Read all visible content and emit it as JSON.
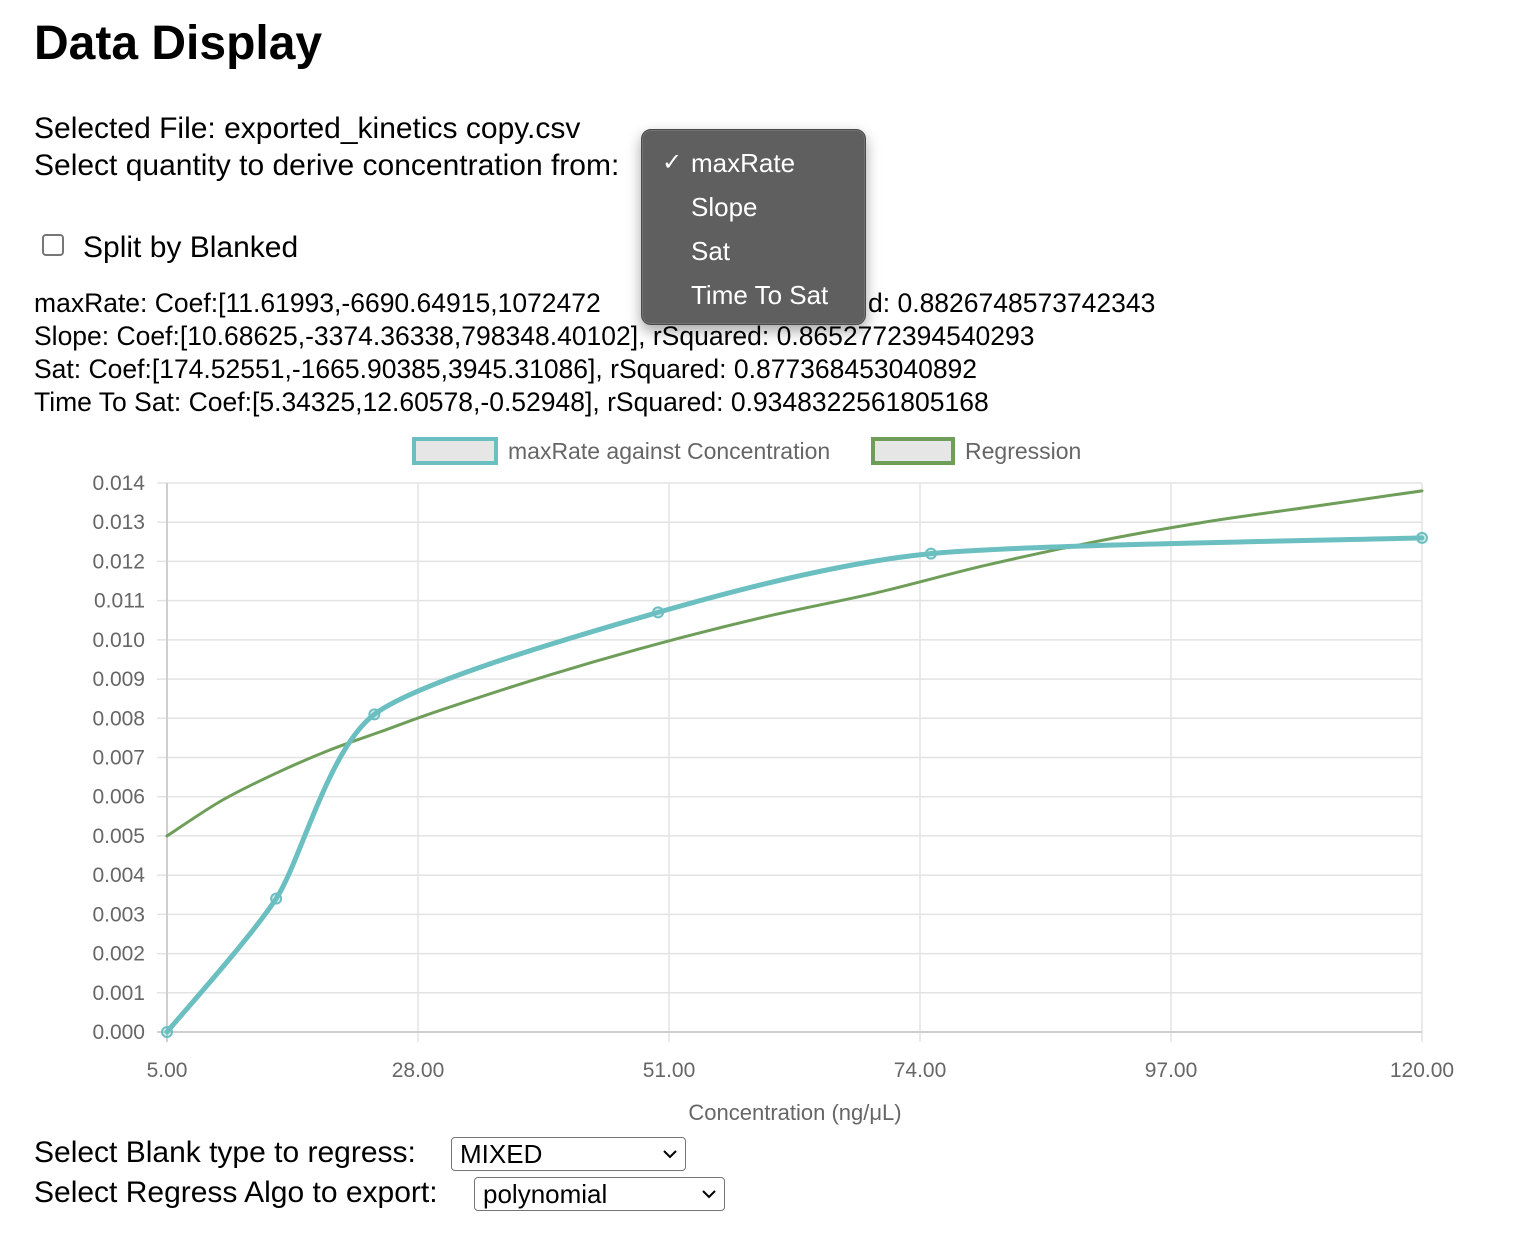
{
  "header": {
    "title": "Data Display"
  },
  "file": {
    "label": "Selected File: exported_kinetics copy.csv"
  },
  "quantity_select": {
    "label": "Select quantity to derive concentration from:",
    "selected": "maxRate",
    "options": [
      "maxRate",
      "Slope",
      "Sat",
      "Time To Sat"
    ],
    "check_mark": "✓"
  },
  "split": {
    "label": "Split by Blanked",
    "checked": false
  },
  "stats": [
    {
      "text": "maxRate: Coef:[11.61993,-6690.64915,1072472",
      "tail": "d: 0.8826748573742343"
    },
    {
      "text": "Slope: Coef:[10.68625,-3374.36338,798348.40102], rSquared: 0.8652772394540293"
    },
    {
      "text": "Sat: Coef:[174.52551,-1665.90385,3945.31086], rSquared: 0.877368453040892"
    },
    {
      "text": "Time To Sat: Coef:[5.34325,12.60578,-0.52948], rSquared: 0.9348322561805168"
    }
  ],
  "chart_data": {
    "type": "line",
    "xlabel": "Concentration (ng/μL)",
    "ylabel": "",
    "xlim": [
      5,
      120
    ],
    "ylim": [
      0,
      0.014
    ],
    "x_ticks": [
      "5.00",
      "28.00",
      "51.00",
      "74.00",
      "97.00",
      "120.00"
    ],
    "y_ticks": [
      "0.000",
      "0.001",
      "0.002",
      "0.003",
      "0.004",
      "0.005",
      "0.006",
      "0.007",
      "0.008",
      "0.009",
      "0.010",
      "0.011",
      "0.012",
      "0.013",
      "0.014"
    ],
    "grid": true,
    "legend_placement": "top",
    "series": [
      {
        "name": "maxRate against Concentration",
        "color": "#6bbfc0",
        "x": [
          5,
          15,
          24,
          50,
          75,
          120
        ],
        "y": [
          0.0,
          0.0034,
          0.0081,
          0.0107,
          0.0122,
          0.0126
        ],
        "markers": true
      },
      {
        "name": "Regression",
        "color": "#6e9e59",
        "x": [
          5,
          10,
          15,
          20,
          25,
          30,
          40,
          50,
          60,
          70,
          80,
          90,
          100,
          110,
          120
        ],
        "y": [
          0.005,
          0.0059,
          0.0066,
          0.0072,
          0.0077,
          0.0082,
          0.0091,
          0.0099,
          0.0106,
          0.0112,
          0.0119,
          0.0125,
          0.013,
          0.0134,
          0.0138
        ],
        "markers": false
      }
    ]
  },
  "blank_select": {
    "label": "Select Blank type to regress:",
    "selected": "MIXED"
  },
  "algo_select": {
    "label": "Select Regress Algo to export:",
    "selected": "polynomial"
  }
}
